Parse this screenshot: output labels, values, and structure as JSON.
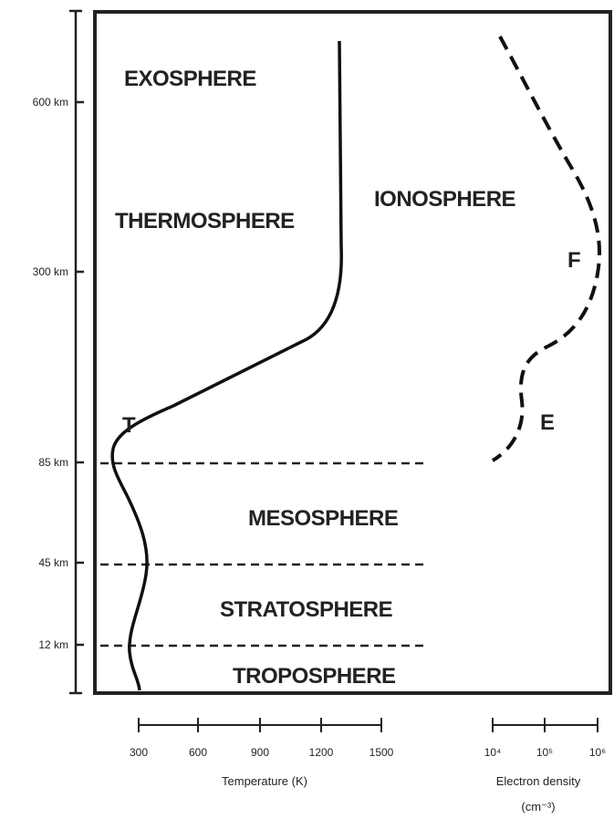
{
  "layers": {
    "exosphere": "EXOSPHERE",
    "thermosphere": "THERMOSPHERE",
    "ionosphere": "IONOSPHERE",
    "mesosphere": "MESOSPHERE",
    "stratosphere": "STRATOSPHERE",
    "troposphere": "TROPOSPHERE"
  },
  "markers": {
    "t": "T",
    "f": "F",
    "e": "E"
  },
  "altitude_labels": [
    "600 km",
    "300 km",
    "85 km",
    "45 km",
    "12 km"
  ],
  "temperature_axis": {
    "ticks": [
      "300",
      "600",
      "900",
      "1200",
      "1500"
    ],
    "label": "Temperature (K)"
  },
  "density_axis": {
    "ticks": [
      "10⁴",
      "10⁵",
      "10⁶"
    ],
    "label": "Electron density",
    "unit": "(cm⁻³)"
  }
}
